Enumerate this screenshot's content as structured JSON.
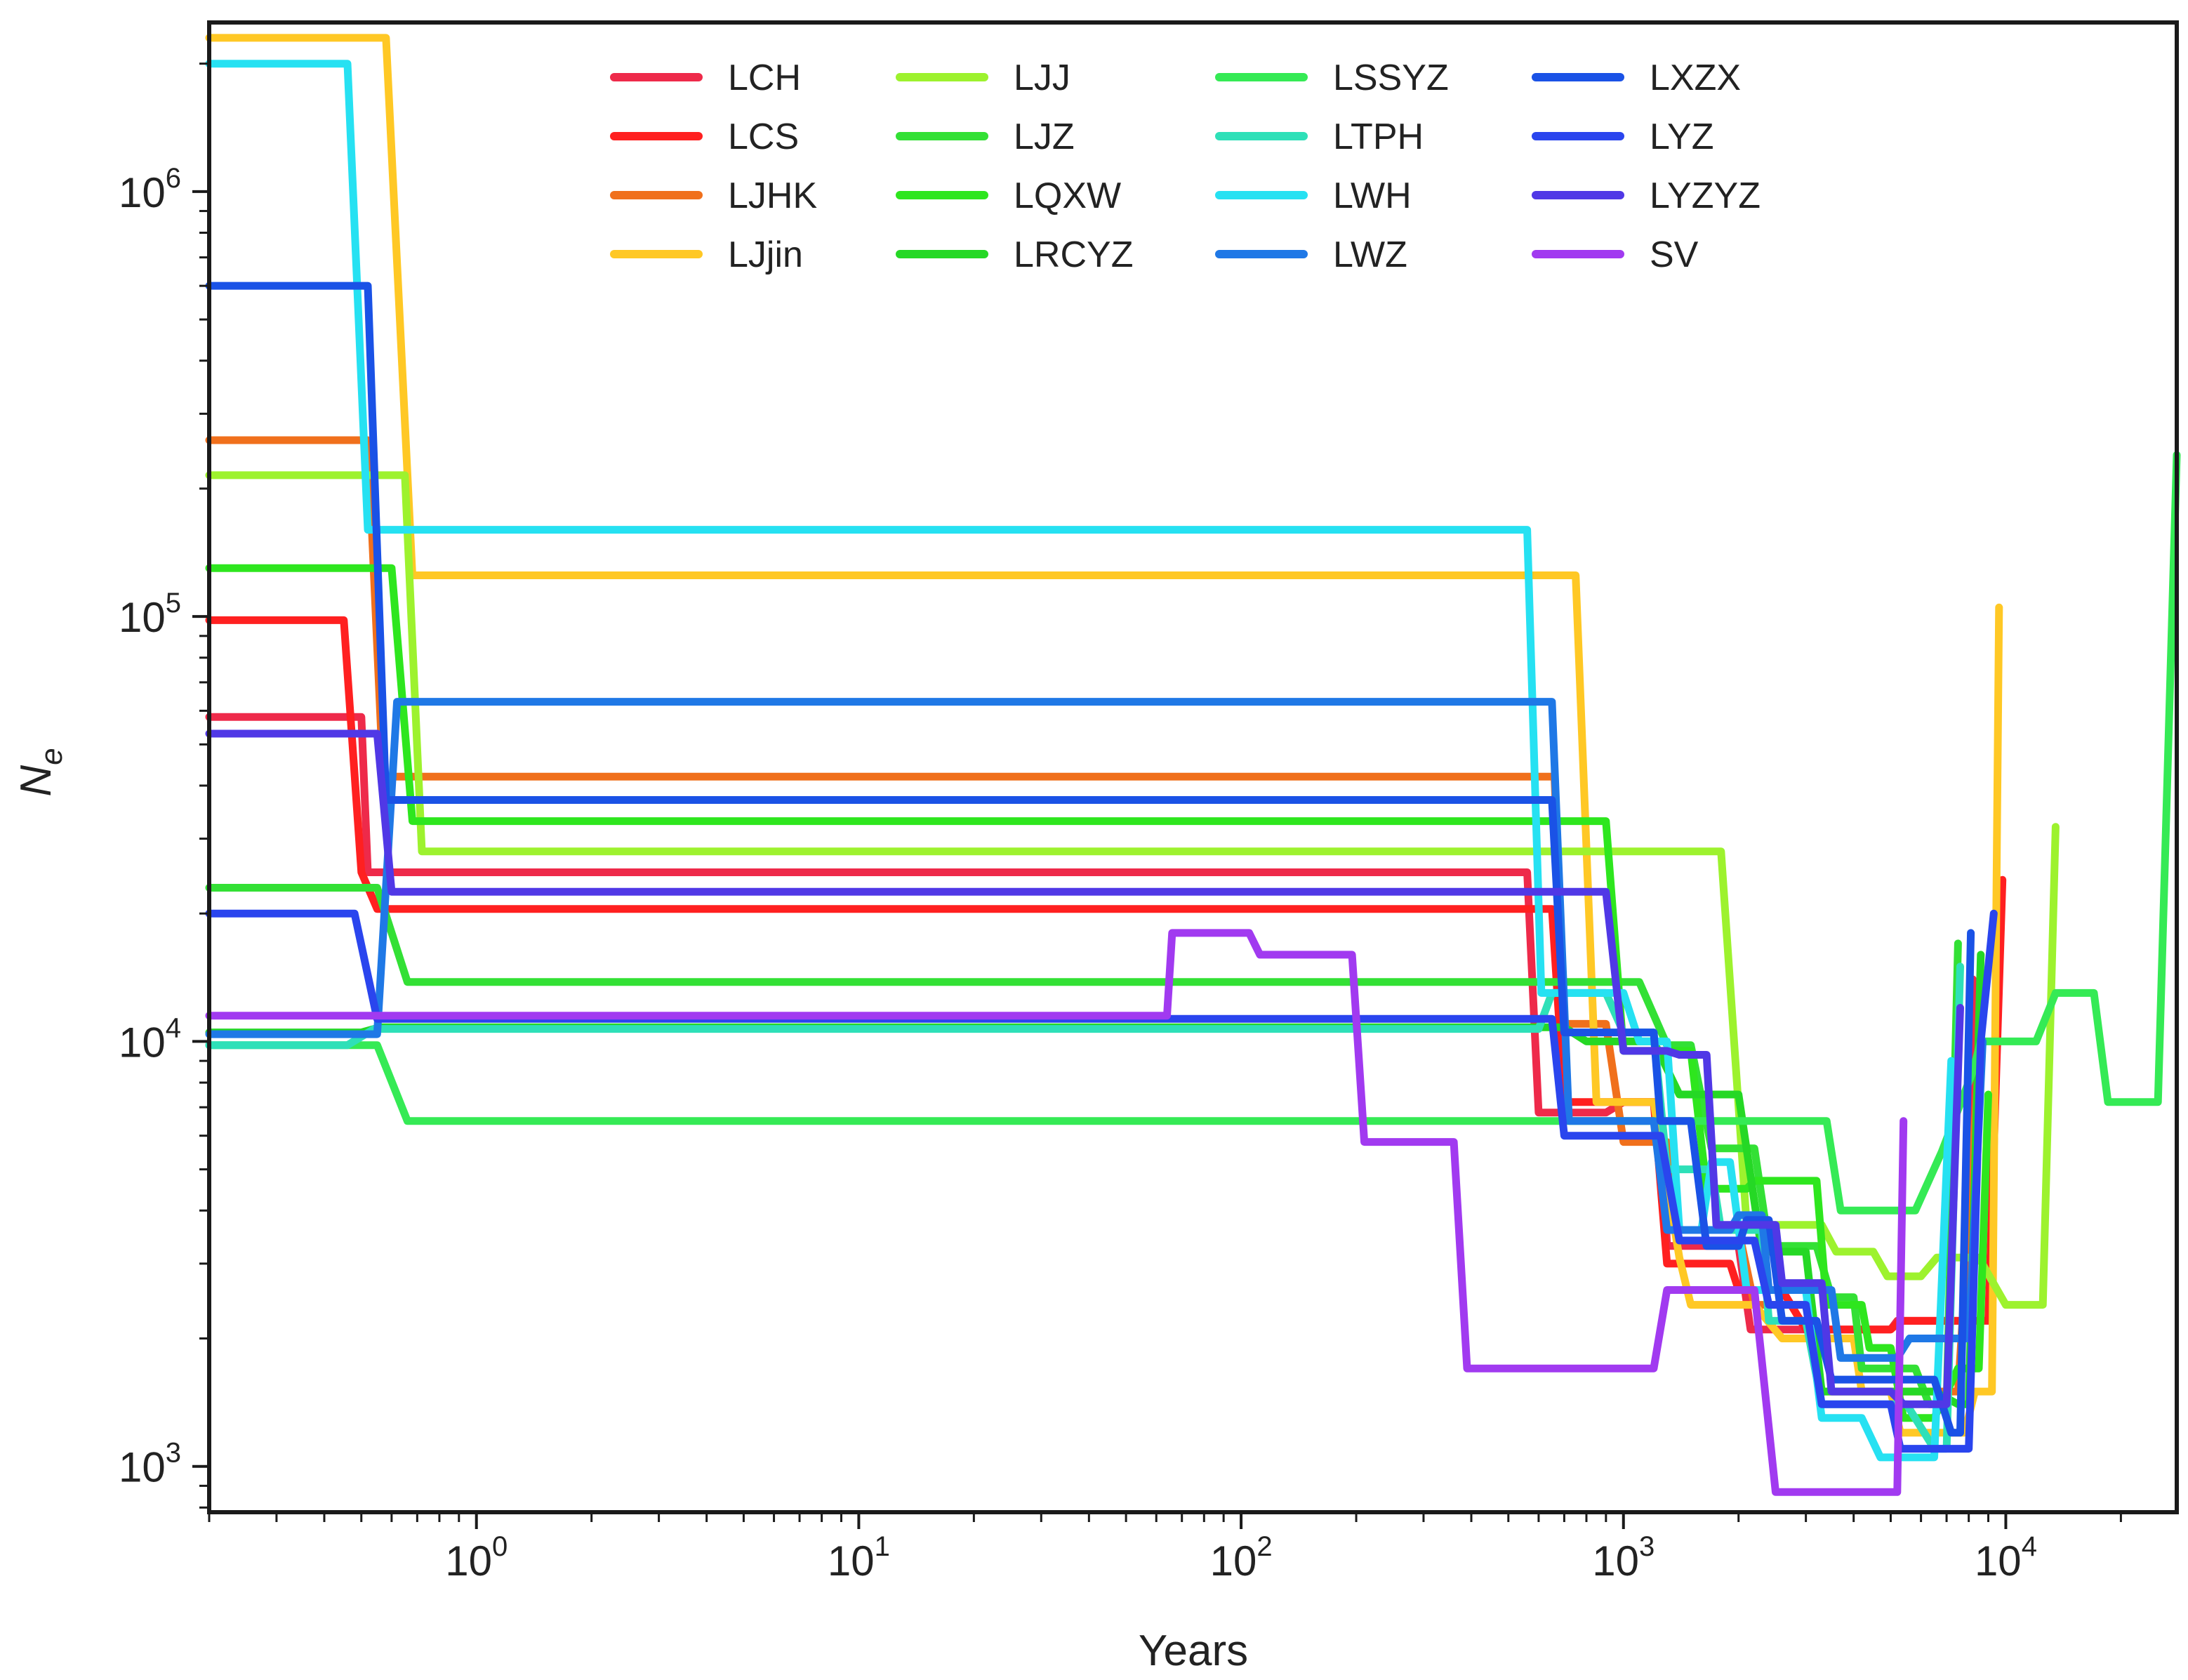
{
  "chart_data": {
    "type": "line",
    "title": "",
    "xlabel": "Years",
    "ylabel": "N",
    "ylabel_subscript": "e",
    "xscale": "log",
    "yscale": "log",
    "xlim": [
      0.2,
      28000
    ],
    "ylim": [
      780,
      2500000
    ],
    "x_ticks": [
      {
        "value": 1,
        "base": "10",
        "exp": "0"
      },
      {
        "value": 10,
        "base": "10",
        "exp": "1"
      },
      {
        "value": 100,
        "base": "10",
        "exp": "2"
      },
      {
        "value": 1000,
        "base": "10",
        "exp": "3"
      },
      {
        "value": 10000,
        "base": "10",
        "exp": "4"
      }
    ],
    "y_ticks": [
      {
        "value": 1000,
        "base": "10",
        "exp": "3"
      },
      {
        "value": 10000,
        "base": "10",
        "exp": "4"
      },
      {
        "value": 100000,
        "base": "10",
        "exp": "5"
      },
      {
        "value": 1000000,
        "base": "10",
        "exp": "6"
      }
    ],
    "legend_position": "top, 4 columns",
    "series": [
      {
        "name": "LCH",
        "color": "#ee2a4a",
        "points": [
          [
            0.2,
            58000
          ],
          [
            0.5,
            58000
          ],
          [
            0.52,
            25000
          ],
          [
            560,
            25000
          ],
          [
            600,
            6800
          ],
          [
            900,
            6800
          ],
          [
            1000,
            7200
          ],
          [
            1250,
            7200
          ],
          [
            1300,
            3300
          ],
          [
            2000,
            3300
          ],
          [
            2150,
            2100
          ],
          [
            5000,
            2100
          ],
          [
            5200,
            2200
          ],
          [
            7800,
            2200
          ],
          [
            8200,
            14000
          ]
        ]
      },
      {
        "name": "LCS",
        "color": "#ff2020",
        "points": [
          [
            0.2,
            98000
          ],
          [
            0.45,
            98000
          ],
          [
            0.5,
            25000
          ],
          [
            0.55,
            20500
          ],
          [
            600,
            20500
          ],
          [
            650,
            20500
          ],
          [
            700,
            7200
          ],
          [
            1200,
            7200
          ],
          [
            1300,
            3000
          ],
          [
            1900,
            3000
          ],
          [
            2000,
            2600
          ],
          [
            2600,
            2600
          ],
          [
            3000,
            2100
          ],
          [
            5000,
            2100
          ],
          [
            5300,
            2200
          ],
          [
            9000,
            2200
          ],
          [
            9800,
            24000
          ]
        ]
      },
      {
        "name": "LJHK",
        "color": "#f0701c",
        "points": [
          [
            0.2,
            260000
          ],
          [
            0.52,
            260000
          ],
          [
            0.57,
            42000
          ],
          [
            660,
            42000
          ],
          [
            700,
            11000
          ],
          [
            900,
            11000
          ],
          [
            1000,
            5800
          ],
          [
            1300,
            5800
          ],
          [
            1400,
            3600
          ],
          [
            2000,
            3600
          ],
          [
            2200,
            2400
          ],
          [
            3000,
            2400
          ],
          [
            3300,
            1500
          ],
          [
            6000,
            1500
          ],
          [
            7500,
            1500
          ],
          [
            8500,
            9000
          ]
        ]
      },
      {
        "name": "LJjin",
        "color": "#ffc825",
        "points": [
          [
            0.2,
            2300000
          ],
          [
            0.58,
            2300000
          ],
          [
            0.68,
            125000
          ],
          [
            750,
            125000
          ],
          [
            850,
            7200
          ],
          [
            1200,
            7200
          ],
          [
            1400,
            3100
          ],
          [
            1500,
            2400
          ],
          [
            2200,
            2400
          ],
          [
            2600,
            2000
          ],
          [
            4000,
            2000
          ],
          [
            4200,
            1500
          ],
          [
            5000,
            1500
          ],
          [
            5300,
            1200
          ],
          [
            7800,
            1200
          ],
          [
            8300,
            1500
          ],
          [
            9200,
            1500
          ],
          [
            9600,
            105000
          ]
        ]
      },
      {
        "name": "LJJ",
        "color": "#9df22e",
        "points": [
          [
            0.2,
            215000
          ],
          [
            0.65,
            215000
          ],
          [
            0.72,
            28000
          ],
          [
            1800,
            28000
          ],
          [
            2100,
            3700
          ],
          [
            3300,
            3700
          ],
          [
            3600,
            3200
          ],
          [
            4500,
            3200
          ],
          [
            4900,
            2800
          ],
          [
            6000,
            2800
          ],
          [
            6600,
            3100
          ],
          [
            8500,
            3100
          ],
          [
            10000,
            2400
          ],
          [
            12500,
            2400
          ],
          [
            13500,
            32000
          ]
        ]
      },
      {
        "name": "LJZ",
        "color": "#33e035",
        "points": [
          [
            0.2,
            23000
          ],
          [
            0.55,
            23000
          ],
          [
            0.66,
            13800
          ],
          [
            1100,
            13800
          ],
          [
            1300,
            9800
          ],
          [
            1500,
            9800
          ],
          [
            1700,
            5600
          ],
          [
            2200,
            5600
          ],
          [
            2400,
            3300
          ],
          [
            3200,
            3300
          ],
          [
            3500,
            2500
          ],
          [
            4000,
            2500
          ],
          [
            4200,
            1700
          ],
          [
            5800,
            1700
          ],
          [
            6300,
            1400
          ],
          [
            7000,
            1400
          ],
          [
            7500,
            17000
          ]
        ]
      },
      {
        "name": "LQXW",
        "color": "#2ee61e",
        "points": [
          [
            0.2,
            130000
          ],
          [
            0.6,
            130000
          ],
          [
            0.68,
            33000
          ],
          [
            900,
            33000
          ],
          [
            1000,
            9500
          ],
          [
            1500,
            9500
          ],
          [
            1650,
            4500
          ],
          [
            2100,
            4500
          ],
          [
            2200,
            4700
          ],
          [
            3200,
            4700
          ],
          [
            3400,
            2400
          ],
          [
            4200,
            2400
          ],
          [
            4400,
            1900
          ],
          [
            5000,
            1900
          ],
          [
            5400,
            1300
          ],
          [
            6500,
            1300
          ],
          [
            7500,
            1700
          ],
          [
            8500,
            1700
          ],
          [
            9000,
            7500
          ]
        ]
      },
      {
        "name": "LRCYZ",
        "color": "#25d825",
        "points": [
          [
            0.2,
            10500
          ],
          [
            0.5,
            10500
          ],
          [
            0.56,
            10800
          ],
          [
            700,
            10800
          ],
          [
            800,
            10000
          ],
          [
            1200,
            10000
          ],
          [
            1400,
            7500
          ],
          [
            2000,
            7500
          ],
          [
            2300,
            3200
          ],
          [
            3000,
            3200
          ],
          [
            3300,
            1500
          ],
          [
            6500,
            1500
          ],
          [
            7500,
            1400
          ],
          [
            8000,
            1400
          ],
          [
            8600,
            16000
          ]
        ]
      },
      {
        "name": "LSSYZ",
        "color": "#35ea55",
        "points": [
          [
            0.2,
            9800
          ],
          [
            0.55,
            9800
          ],
          [
            0.66,
            6500
          ],
          [
            2500,
            6500
          ],
          [
            3000,
            6500
          ],
          [
            3400,
            6500
          ],
          [
            3700,
            4000
          ],
          [
            5800,
            4000
          ],
          [
            6800,
            5500
          ],
          [
            8200,
            8500
          ],
          [
            8600,
            10000
          ],
          [
            12000,
            10000
          ],
          [
            13500,
            13000
          ],
          [
            17000,
            13000
          ],
          [
            18500,
            7200
          ],
          [
            25000,
            7200
          ],
          [
            28000,
            240000
          ]
        ]
      },
      {
        "name": "LTPH",
        "color": "#2ee0b8",
        "points": [
          [
            0.2,
            9800
          ],
          [
            0.46,
            9800
          ],
          [
            0.54,
            10700
          ],
          [
            600,
            10700
          ],
          [
            650,
            13000
          ],
          [
            900,
            13000
          ],
          [
            1000,
            10500
          ],
          [
            1200,
            10500
          ],
          [
            1300,
            5000
          ],
          [
            1700,
            5000
          ],
          [
            1800,
            3600
          ],
          [
            2300,
            3600
          ],
          [
            2400,
            2200
          ],
          [
            3000,
            2200
          ],
          [
            3300,
            1400
          ],
          [
            5500,
            1400
          ],
          [
            6500,
            1100
          ],
          [
            7000,
            1100
          ],
          [
            7600,
            15000
          ]
        ]
      },
      {
        "name": "LWH",
        "color": "#26e1f2",
        "points": [
          [
            0.2,
            2000000
          ],
          [
            0.46,
            2000000
          ],
          [
            0.52,
            160000
          ],
          [
            560,
            160000
          ],
          [
            610,
            13000
          ],
          [
            1000,
            13000
          ],
          [
            1100,
            10000
          ],
          [
            1300,
            10000
          ],
          [
            1400,
            3600
          ],
          [
            1600,
            3600
          ],
          [
            1700,
            5200
          ],
          [
            1900,
            5200
          ],
          [
            2100,
            2600
          ],
          [
            3000,
            2600
          ],
          [
            3300,
            1300
          ],
          [
            4200,
            1300
          ],
          [
            4700,
            1050
          ],
          [
            6500,
            1050
          ],
          [
            7200,
            9000
          ]
        ]
      },
      {
        "name": "LWZ",
        "color": "#1f78e6",
        "points": [
          [
            0.2,
            10400
          ],
          [
            0.55,
            10400
          ],
          [
            0.62,
            63000
          ],
          [
            650,
            63000
          ],
          [
            720,
            6500
          ],
          [
            1200,
            6500
          ],
          [
            1300,
            3600
          ],
          [
            1900,
            3600
          ],
          [
            2000,
            3900
          ],
          [
            2300,
            3900
          ],
          [
            2400,
            2600
          ],
          [
            3500,
            2600
          ],
          [
            3700,
            1800
          ],
          [
            5200,
            1800
          ],
          [
            5600,
            2000
          ],
          [
            8000,
            2000
          ],
          [
            8700,
            10000
          ]
        ]
      },
      {
        "name": "LXZX",
        "color": "#1a52e6",
        "points": [
          [
            0.2,
            600000
          ],
          [
            0.52,
            600000
          ],
          [
            0.58,
            37000
          ],
          [
            650,
            37000
          ],
          [
            700,
            10500
          ],
          [
            1200,
            10500
          ],
          [
            1250,
            6500
          ],
          [
            1500,
            6500
          ],
          [
            1650,
            3300
          ],
          [
            2000,
            3300
          ],
          [
            2100,
            3800
          ],
          [
            2400,
            3800
          ],
          [
            2600,
            2200
          ],
          [
            3200,
            2200
          ],
          [
            3500,
            1600
          ],
          [
            6500,
            1600
          ],
          [
            7200,
            1200
          ],
          [
            7600,
            1200
          ],
          [
            8100,
            18000
          ]
        ]
      },
      {
        "name": "LYZ",
        "color": "#2a45ee",
        "points": [
          [
            0.2,
            20000
          ],
          [
            0.48,
            20000
          ],
          [
            0.55,
            11300
          ],
          [
            650,
            11300
          ],
          [
            700,
            6000
          ],
          [
            1250,
            6000
          ],
          [
            1400,
            3400
          ],
          [
            2200,
            3400
          ],
          [
            2400,
            2400
          ],
          [
            3000,
            2400
          ],
          [
            3300,
            1400
          ],
          [
            5000,
            1400
          ],
          [
            5300,
            1100
          ],
          [
            8000,
            1100
          ],
          [
            8600,
            10000
          ],
          [
            9300,
            20000
          ]
        ]
      },
      {
        "name": "LYZYZ",
        "color": "#5038e6",
        "points": [
          [
            0.2,
            53000
          ],
          [
            0.55,
            53000
          ],
          [
            0.6,
            22500
          ],
          [
            900,
            22500
          ],
          [
            1000,
            9500
          ],
          [
            1300,
            9500
          ],
          [
            1400,
            9300
          ],
          [
            1650,
            9300
          ],
          [
            1750,
            3700
          ],
          [
            2500,
            3700
          ],
          [
            2600,
            2700
          ],
          [
            3300,
            2700
          ],
          [
            3500,
            1500
          ],
          [
            5000,
            1500
          ],
          [
            5400,
            1400
          ],
          [
            7000,
            1400
          ],
          [
            7600,
            12000
          ]
        ]
      },
      {
        "name": "SV",
        "color": "#a13af0",
        "points": [
          [
            0.2,
            11500
          ],
          [
            64,
            11500
          ],
          [
            66,
            18000
          ],
          [
            105,
            18000
          ],
          [
            112,
            16000
          ],
          [
            195,
            16000
          ],
          [
            210,
            5800
          ],
          [
            360,
            5800
          ],
          [
            390,
            1700
          ],
          [
            1200,
            1700
          ],
          [
            1300,
            2600
          ],
          [
            2200,
            2600
          ],
          [
            2500,
            870
          ],
          [
            5200,
            870
          ],
          [
            5400,
            6500
          ]
        ]
      }
    ]
  }
}
